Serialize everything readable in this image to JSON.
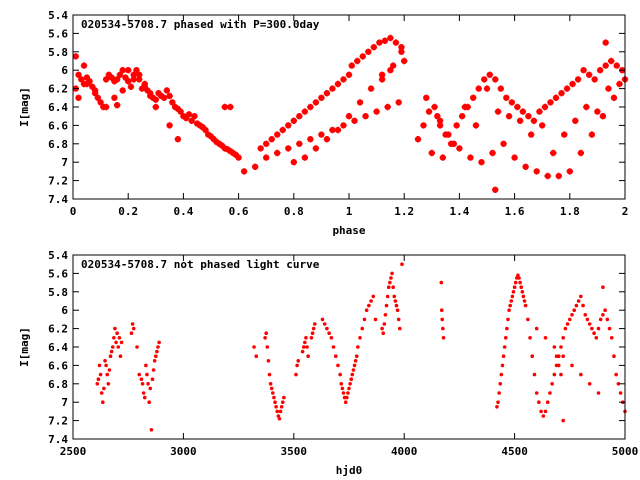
{
  "chart_data": [
    {
      "type": "scatter",
      "title": "020534-5708.7 phased with P=300.0day",
      "xlabel": "phase",
      "ylabel": "I[mag]",
      "xlim": [
        0,
        2
      ],
      "ylim": [
        5.4,
        7.4
      ],
      "y_inverted": true,
      "grid": false,
      "x_ticks": [
        "0",
        "0.2",
        "0.4",
        "0.6",
        "0.8",
        "1",
        "1.2",
        "1.4",
        "1.6",
        "1.8",
        "2"
      ],
      "y_ticks": [
        "5.4",
        "5.6",
        "5.8",
        "6",
        "6.2",
        "6.4",
        "6.6",
        "6.8",
        "7",
        "7.2",
        "7.4"
      ],
      "marker": "star",
      "series": [
        {
          "color": "#ff0000",
          "x": [
            0.01,
            0.02,
            0.03,
            0.04,
            0.05,
            0.06,
            0.07,
            0.08,
            0.09,
            0.1,
            0.11,
            0.12,
            0.13,
            0.14,
            0.15,
            0.16,
            0.17,
            0.18,
            0.19,
            0.2,
            0.21,
            0.22,
            0.23,
            0.24,
            0.25,
            0.26,
            0.27,
            0.28,
            0.29,
            0.3,
            0.02,
            0.05,
            0.08,
            0.12,
            0.16,
            0.2,
            0.24,
            0.28,
            0.01,
            0.04,
            0.15,
            0.18,
            0.22,
            0.26,
            0.3,
            0.31,
            0.32,
            0.33,
            0.34,
            0.35,
            0.36,
            0.37,
            0.38,
            0.39,
            0.4,
            0.41,
            0.42,
            0.43,
            0.44,
            0.45,
            0.46,
            0.47,
            0.48,
            0.49,
            0.5,
            0.51,
            0.52,
            0.53,
            0.54,
            0.55,
            0.56,
            0.57,
            0.58,
            0.59,
            0.6,
            0.35,
            0.38,
            0.55,
            0.57,
            0.62,
            0.66,
            0.68,
            0.7,
            0.72,
            0.74,
            0.76,
            0.78,
            0.8,
            0.82,
            0.84,
            0.86,
            0.88,
            0.9,
            0.92,
            0.94,
            0.96,
            0.98,
            1.0,
            0.7,
            0.74,
            0.78,
            0.82,
            0.86,
            0.9,
            0.94,
            0.98,
            1.02,
            1.06,
            1.1,
            1.14,
            1.18,
            0.8,
            0.84,
            0.88,
            0.92,
            0.96,
            1.0,
            1.04,
            1.08,
            1.12,
            1.16,
            1.2,
            1.01,
            1.03,
            1.05,
            1.07,
            1.09,
            1.11,
            1.13,
            1.15,
            1.17,
            1.19,
            1.12,
            1.15,
            1.19,
            1.25,
            1.27,
            1.29,
            1.31,
            1.33,
            1.35,
            1.37,
            1.39,
            1.41,
            1.43,
            1.45,
            1.47,
            1.49,
            1.51,
            1.53,
            1.55,
            1.57,
            1.59,
            1.61,
            1.63,
            1.65,
            1.67,
            1.69,
            1.71,
            1.73,
            1.75,
            1.77,
            1.79,
            1.81,
            1.83,
            1.85,
            1.87,
            1.89,
            1.91,
            1.93,
            1.95,
            1.97,
            1.99,
            1.28,
            1.32,
            1.36,
            1.4,
            1.44,
            1.48,
            1.52,
            1.56,
            1.6,
            1.64,
            1.68,
            1.72,
            1.76,
            1.8,
            1.84,
            1.88,
            1.92,
            1.96,
            2.0,
            1.3,
            1.38,
            1.46,
            1.54,
            1.62,
            1.7,
            1.78,
            1.86,
            1.94,
            1.33,
            1.42,
            1.5,
            1.58,
            1.66,
            1.74,
            1.82,
            1.9,
            1.98,
            1.53,
            1.93,
            1.34
          ],
          "y": [
            6.2,
            6.05,
            6.1,
            6.15,
            6.08,
            6.12,
            6.18,
            6.22,
            6.3,
            6.35,
            6.4,
            6.1,
            6.05,
            6.08,
            6.12,
            6.1,
            6.05,
            6.0,
            6.08,
            6.12,
            6.18,
            6.05,
            6.0,
            6.1,
            6.2,
            6.15,
            6.22,
            6.25,
            6.3,
            6.32,
            6.3,
            6.15,
            6.25,
            6.4,
            6.38,
            6.0,
            6.05,
            6.28,
            5.85,
            5.95,
            6.3,
            6.22,
            6.1,
            6.18,
            6.4,
            6.25,
            6.28,
            6.3,
            6.22,
            6.28,
            6.35,
            6.4,
            6.42,
            6.45,
            6.5,
            6.52,
            6.48,
            6.55,
            6.5,
            6.58,
            6.6,
            6.62,
            6.65,
            6.7,
            6.72,
            6.75,
            6.78,
            6.8,
            6.82,
            6.85,
            6.86,
            6.88,
            6.9,
            6.92,
            6.95,
            6.6,
            6.75,
            6.4,
            6.4,
            7.1,
            7.05,
            6.85,
            6.8,
            6.75,
            6.7,
            6.65,
            6.6,
            6.55,
            6.5,
            6.45,
            6.4,
            6.35,
            6.3,
            6.25,
            6.2,
            6.15,
            6.1,
            6.05,
            6.95,
            6.9,
            6.85,
            6.8,
            6.75,
            6.7,
            6.65,
            6.6,
            6.55,
            6.5,
            6.45,
            6.4,
            6.35,
            7.0,
            6.95,
            6.85,
            6.75,
            6.65,
            6.5,
            6.35,
            6.2,
            6.05,
            5.95,
            5.9,
            5.95,
            5.9,
            5.85,
            5.8,
            5.75,
            5.7,
            5.68,
            5.65,
            5.7,
            5.75,
            6.1,
            6.0,
            5.8,
            6.75,
            6.6,
            6.45,
            6.4,
            6.55,
            6.7,
            6.8,
            6.6,
            6.5,
            6.4,
            6.3,
            6.2,
            6.1,
            6.05,
            6.1,
            6.2,
            6.3,
            6.35,
            6.4,
            6.45,
            6.5,
            6.55,
            6.45,
            6.4,
            6.35,
            6.3,
            6.25,
            6.2,
            6.15,
            6.1,
            6.0,
            6.05,
            6.1,
            6.0,
            5.95,
            5.9,
            5.95,
            6.0,
            6.3,
            6.5,
            6.7,
            6.85,
            6.95,
            7.0,
            6.9,
            6.8,
            6.95,
            7.05,
            7.1,
            7.15,
            7.15,
            7.1,
            6.9,
            6.7,
            6.5,
            6.3,
            6.1,
            6.9,
            6.8,
            6.6,
            6.45,
            6.55,
            6.6,
            6.7,
            6.4,
            6.2,
            6.6,
            6.4,
            6.2,
            6.5,
            6.7,
            6.9,
            6.55,
            6.45,
            6.15,
            7.3,
            5.7,
            6.95
          ]
        }
      ]
    },
    {
      "type": "scatter",
      "title": "020534-5708.7 not phased light curve",
      "xlabel": "hjd0",
      "ylabel": "I[mag]",
      "xlim": [
        2500,
        5000
      ],
      "ylim": [
        5.4,
        7.4
      ],
      "y_inverted": true,
      "grid": false,
      "x_ticks": [
        "2500",
        "3000",
        "3500",
        "4000",
        "4500",
        "5000"
      ],
      "y_ticks": [
        "5.4",
        "5.6",
        "5.8",
        "6",
        "6.2",
        "6.4",
        "6.6",
        "6.8",
        "7",
        "7.2",
        "7.4"
      ],
      "marker": "dot",
      "series": [
        {
          "color": "#ff0000",
          "x": [
            2610,
            2615,
            2620,
            2625,
            2630,
            2635,
            2640,
            2645,
            2650,
            2655,
            2660,
            2665,
            2670,
            2675,
            2680,
            2685,
            2690,
            2695,
            2700,
            2705,
            2710,
            2715,
            2720,
            2765,
            2770,
            2775,
            2790,
            2800,
            2810,
            2815,
            2820,
            2825,
            2830,
            2835,
            2840,
            2845,
            2850,
            2860,
            2865,
            2870,
            2875,
            2880,
            2885,
            2890,
            2855,
            3320,
            3330,
            3370,
            3375,
            3380,
            3385,
            3390,
            3395,
            3400,
            3405,
            3410,
            3415,
            3420,
            3425,
            3430,
            3435,
            3440,
            3445,
            3450,
            3455,
            3510,
            3515,
            3520,
            3540,
            3545,
            3550,
            3555,
            3560,
            3565,
            3580,
            3585,
            3590,
            3595,
            3630,
            3640,
            3650,
            3660,
            3670,
            3680,
            3690,
            3700,
            3710,
            3715,
            3720,
            3725,
            3730,
            3735,
            3740,
            3745,
            3750,
            3755,
            3760,
            3765,
            3770,
            3775,
            3780,
            3785,
            3790,
            3800,
            3810,
            3820,
            3830,
            3840,
            3850,
            3860,
            3870,
            3900,
            3905,
            3910,
            3915,
            3920,
            3925,
            3930,
            3935,
            3940,
            3945,
            3950,
            3955,
            3960,
            3965,
            3970,
            3975,
            3980,
            3990,
            4170,
            4172,
            4175,
            4178,
            4168,
            4420,
            4425,
            4430,
            4435,
            4440,
            4445,
            4450,
            4455,
            4460,
            4465,
            4470,
            4475,
            4480,
            4485,
            4490,
            4495,
            4500,
            4505,
            4510,
            4515,
            4520,
            4525,
            4530,
            4535,
            4540,
            4545,
            4550,
            4560,
            4570,
            4580,
            4590,
            4600,
            4610,
            4620,
            4630,
            4640,
            4650,
            4660,
            4670,
            4680,
            4690,
            4700,
            4710,
            4720,
            4730,
            4740,
            4750,
            4760,
            4770,
            4780,
            4790,
            4800,
            4810,
            4820,
            4830,
            4840,
            4850,
            4860,
            4870,
            4880,
            4890,
            4900,
            4910,
            4920,
            4930,
            4940,
            4950,
            4960,
            4970,
            4980,
            4990,
            5000,
            4600,
            4640,
            4680,
            4720,
            4760,
            4800,
            4840,
            4880,
            4900,
            4690,
            4700,
            4710,
            4720
          ],
          "y": [
            6.8,
            6.75,
            6.6,
            6.7,
            6.9,
            7.0,
            6.85,
            6.55,
            6.6,
            6.7,
            6.8,
            6.65,
            6.5,
            6.45,
            6.4,
            6.3,
            6.2,
            6.35,
            6.25,
            6.4,
            6.3,
            6.5,
            6.35,
            6.25,
            6.15,
            6.2,
            6.4,
            6.7,
            6.75,
            6.8,
            6.9,
            6.95,
            6.6,
            6.7,
            6.8,
            7.0,
            6.85,
            6.75,
            6.65,
            6.55,
            6.5,
            6.45,
            6.4,
            6.35,
            7.3,
            6.4,
            6.5,
            6.3,
            6.25,
            6.4,
            6.55,
            6.7,
            6.8,
            6.85,
            6.9,
            6.95,
            7.0,
            7.05,
            7.1,
            7.15,
            7.18,
            7.1,
            7.05,
            7.0,
            6.95,
            6.7,
            6.6,
            6.55,
            6.45,
            6.4,
            6.35,
            6.3,
            6.4,
            6.5,
            6.3,
            6.25,
            6.2,
            6.15,
            6.1,
            6.15,
            6.2,
            6.25,
            6.3,
            6.4,
            6.5,
            6.6,
            6.7,
            6.8,
            6.85,
            6.9,
            6.95,
            7.0,
            6.95,
            6.9,
            6.85,
            6.8,
            6.75,
            6.7,
            6.65,
            6.6,
            6.55,
            6.5,
            6.4,
            6.3,
            6.2,
            6.1,
            6.0,
            5.95,
            5.9,
            5.85,
            6.1,
            6.2,
            6.25,
            6.15,
            6.05,
            5.95,
            5.85,
            5.75,
            5.7,
            5.65,
            5.6,
            5.75,
            5.85,
            5.9,
            5.95,
            6.0,
            6.1,
            6.2,
            5.5,
            6.0,
            6.1,
            6.2,
            6.3,
            5.7,
            7.05,
            7.0,
            6.9,
            6.8,
            6.7,
            6.6,
            6.5,
            6.4,
            6.3,
            6.2,
            6.1,
            6.0,
            5.95,
            5.9,
            5.85,
            5.8,
            5.75,
            5.7,
            5.65,
            5.62,
            5.65,
            5.7,
            5.75,
            5.8,
            5.85,
            5.9,
            5.95,
            6.1,
            6.3,
            6.5,
            6.7,
            6.9,
            7.0,
            7.1,
            7.15,
            7.1,
            7.0,
            6.9,
            6.8,
            6.7,
            6.6,
            6.5,
            6.4,
            6.3,
            6.2,
            6.15,
            6.1,
            6.05,
            6.0,
            5.95,
            5.9,
            5.85,
            5.95,
            6.05,
            6.1,
            6.15,
            6.2,
            6.25,
            6.3,
            6.2,
            6.1,
            6.05,
            6.0,
            6.1,
            6.2,
            6.3,
            6.5,
            6.7,
            6.8,
            6.9,
            7.0,
            7.1,
            6.2,
            6.3,
            6.4,
            6.5,
            6.6,
            6.7,
            6.8,
            6.9,
            5.75,
            6.5,
            6.6,
            6.7,
            7.2
          ]
        }
      ]
    }
  ]
}
